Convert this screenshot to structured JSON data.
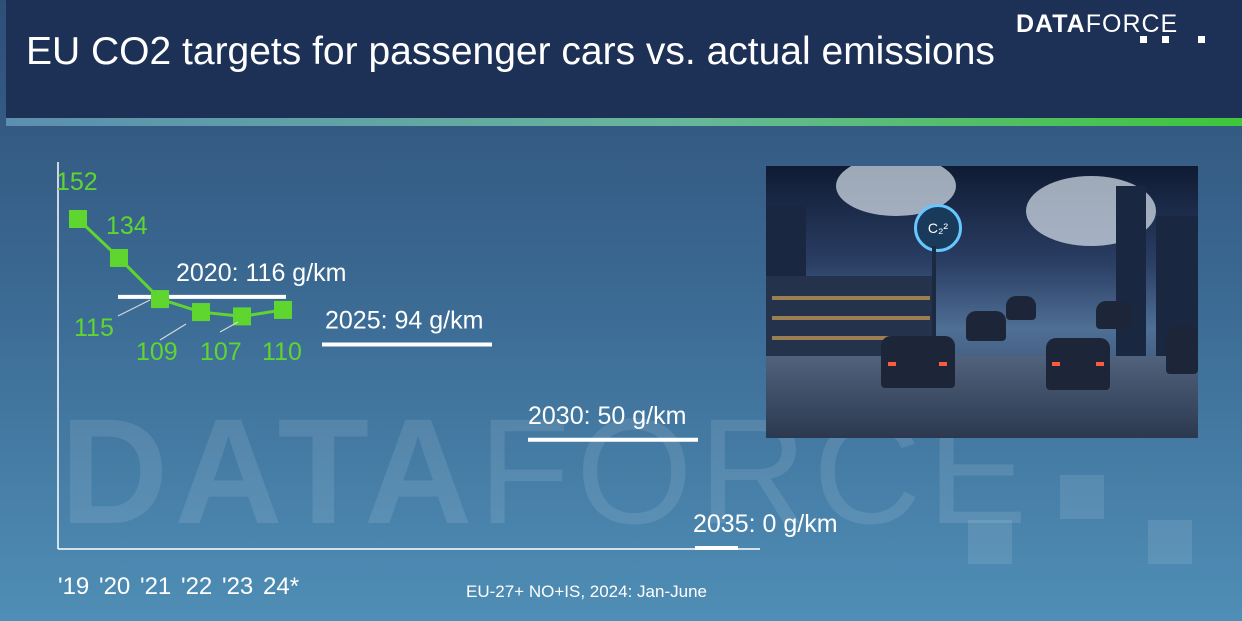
{
  "header": {
    "title": "EU CO2 targets for passenger cars vs. actual emissions",
    "logo_bold": "DATA",
    "logo_light": "FORCE"
  },
  "footnote": "EU-27+ NO+IS, 2024: Jan-June",
  "photo": {
    "sign_label": "C₂²"
  },
  "chart_data": {
    "type": "line",
    "x": [
      "'19",
      "'20",
      "'21",
      "'22",
      "'23",
      "24*"
    ],
    "series": [
      {
        "values": [
          152,
          134,
          115,
          109,
          107,
          110
        ],
        "color": "#5fd62f"
      }
    ],
    "targets": [
      {
        "label": "2020: 116 g/km",
        "value": 116
      },
      {
        "label": "2025: 94 g/km",
        "value": 94
      },
      {
        "label": "2030: 50 g/km",
        "value": 50
      },
      {
        "label": "2035: 0 g/km",
        "value": 0
      }
    ],
    "ylim": [
      0,
      160
    ],
    "xlabel": "",
    "ylabel": "",
    "title": ""
  }
}
